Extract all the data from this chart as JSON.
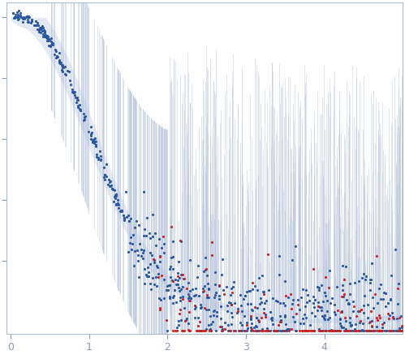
{
  "title": "",
  "xlabel": "",
  "ylabel": "",
  "xlim": [
    -0.05,
    5.0
  ],
  "ylim": [
    -0.04,
    1.05
  ],
  "x_ticks": [
    0,
    1,
    2,
    3,
    4
  ],
  "background_color": "#ffffff",
  "blue_color": "#2a57a0",
  "red_color": "#cc2222",
  "fill_color": "#ccd6e8",
  "line_color": "#b0c0d8",
  "tick_color": "#8899bb",
  "axis_color": "#aabbcc",
  "n_blue_low": 200,
  "n_blue_mid": 220,
  "n_blue_high": 280,
  "n_red_points": 180,
  "n_errbar": 600,
  "seed": 77
}
